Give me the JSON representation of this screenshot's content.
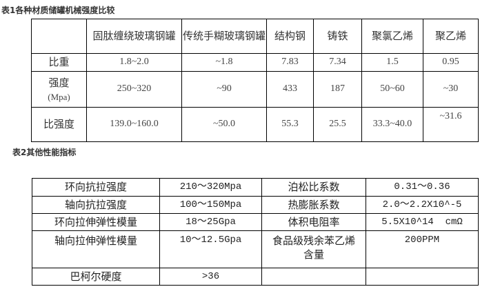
{
  "table1": {
    "title": "表1各种材质储罐机械强度比较",
    "headers": [
      "",
      "固肽缠绕玻璃钢罐",
      "传统手糊玻璃钢罐",
      "结构钢",
      "铸铁",
      "聚氯乙烯",
      "聚乙烯"
    ],
    "rows": [
      {
        "label": "比重",
        "label_unit": "",
        "values": [
          "1.8~2.0",
          "~1.8",
          "7.83",
          "7.34",
          "1.5",
          "0.95"
        ]
      },
      {
        "label": "强度",
        "label_unit": "(Mpa)",
        "values": [
          "250~320",
          "~90",
          "433",
          "187",
          "50~60",
          "~30"
        ]
      },
      {
        "label": "比强度",
        "label_unit": "",
        "values": [
          "139.0~160.0",
          "~50.0",
          "55.3",
          "25.5",
          "33.3~40.0",
          "~31.6"
        ]
      }
    ]
  },
  "table2": {
    "title": "表2其他性能指标",
    "rows": [
      [
        "环向抗拉强度",
        "210～320Mpa",
        "泊松比系数",
        "0.31～0.36"
      ],
      [
        "轴向抗拉强度",
        "100～150Mpa",
        "热膨胀系数",
        "2.0～2.2X10^-5"
      ],
      [
        "环向拉伸弹性模量",
        "18～25Gpa",
        "体积电阻率",
        "5.5X10^14  cmΩ"
      ],
      [
        "轴向拉伸弹性模量",
        "10～12.5Gpa",
        "食品级残余苯乙烯含量",
        "200PPM"
      ],
      [
        "巴柯尔硬度",
        ">36",
        "",
        ""
      ]
    ]
  }
}
